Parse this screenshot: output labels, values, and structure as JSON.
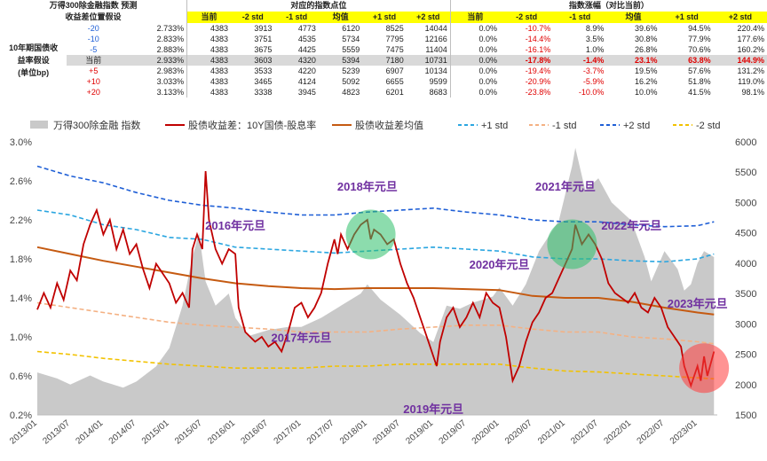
{
  "table": {
    "title_left": "万得300除金融指数 预测",
    "subtitle_left": "收益差位置假设",
    "group_points": "对应的指数点位",
    "group_change": "指数涨幅（对比当前）",
    "row_header": [
      "10年期国债收",
      "益率假设",
      "(单位bp)"
    ],
    "col_labels": [
      "当前",
      "-2 std",
      "-1 std",
      "均值",
      "+1 std",
      "+2 std"
    ],
    "rows": [
      {
        "shift": "-20",
        "yield": "2.733%",
        "points": [
          "4383",
          "3913",
          "4773",
          "6120",
          "8525",
          "14044"
        ],
        "change": [
          "0.0%",
          "-10.7%",
          "8.9%",
          "39.6%",
          "94.5%",
          "220.4%"
        ]
      },
      {
        "shift": "-10",
        "yield": "2.833%",
        "points": [
          "4383",
          "3751",
          "4535",
          "5734",
          "7795",
          "12166"
        ],
        "change": [
          "0.0%",
          "-14.4%",
          "3.5%",
          "30.8%",
          "77.9%",
          "177.6%"
        ]
      },
      {
        "shift": "-5",
        "yield": "2.883%",
        "points": [
          "4383",
          "3675",
          "4425",
          "5559",
          "7475",
          "11404"
        ],
        "change": [
          "0.0%",
          "-16.1%",
          "1.0%",
          "26.8%",
          "70.6%",
          "160.2%"
        ]
      },
      {
        "shift": "当前",
        "yield": "2.933%",
        "points": [
          "4383",
          "3603",
          "4320",
          "5394",
          "7180",
          "10731"
        ],
        "change": [
          "0.0%",
          "-17.8%",
          "-1.4%",
          "23.1%",
          "63.8%",
          "144.9%"
        ]
      },
      {
        "shift": "+5",
        "yield": "2.983%",
        "points": [
          "4383",
          "3533",
          "4220",
          "5239",
          "6907",
          "10134"
        ],
        "change": [
          "0.0%",
          "-19.4%",
          "-3.7%",
          "19.5%",
          "57.6%",
          "131.2%"
        ]
      },
      {
        "shift": "+10",
        "yield": "3.033%",
        "points": [
          "4383",
          "3465",
          "4124",
          "5092",
          "6655",
          "9599"
        ],
        "change": [
          "0.0%",
          "-20.9%",
          "-5.9%",
          "16.2%",
          "51.8%",
          "119.0%"
        ]
      },
      {
        "shift": "+20",
        "yield": "3.133%",
        "points": [
          "4383",
          "3338",
          "3945",
          "4823",
          "6201",
          "8683"
        ],
        "change": [
          "0.0%",
          "-23.8%",
          "-10.0%",
          "10.0%",
          "41.5%",
          "98.1%"
        ]
      }
    ]
  },
  "chart_data": {
    "type": "line",
    "legend": [
      "万得300除金融 指数",
      "股债收益差：10Y国债-股息率",
      "股债收益差均值",
      "+1 std",
      "-1 std",
      "+2 std",
      "-2 std"
    ],
    "x_ticks": [
      "2013/01",
      "2013/07",
      "2014/01",
      "2014/07",
      "2015/01",
      "2015/07",
      "2016/01",
      "2016/07",
      "2017/01",
      "2017/07",
      "2018/01",
      "2018/07",
      "2019/01",
      "2019/07",
      "2020/01",
      "2020/07",
      "2021/01",
      "2021/07",
      "2022/01",
      "2022/07",
      "2023/01"
    ],
    "y_left_ticks": [
      "0.2%",
      "0.6%",
      "1.0%",
      "1.4%",
      "1.8%",
      "2.2%",
      "2.6%",
      "3.0%"
    ],
    "y_left_range": [
      0.2,
      3.0
    ],
    "y_right_ticks": [
      "1500",
      "2000",
      "2500",
      "3000",
      "3500",
      "4000",
      "4500",
      "5000",
      "5500",
      "6000"
    ],
    "y_right_range": [
      1500,
      6000
    ],
    "x_range": [
      2013.0,
      2023.3
    ],
    "index_series": [
      [
        2013.0,
        2200
      ],
      [
        2013.3,
        2100
      ],
      [
        2013.5,
        2000
      ],
      [
        2013.8,
        2150
      ],
      [
        2014.0,
        2050
      ],
      [
        2014.3,
        1950
      ],
      [
        2014.5,
        2050
      ],
      [
        2014.8,
        2300
      ],
      [
        2015.0,
        2600
      ],
      [
        2015.2,
        3300
      ],
      [
        2015.35,
        4100
      ],
      [
        2015.45,
        4500
      ],
      [
        2015.55,
        3700
      ],
      [
        2015.7,
        3300
      ],
      [
        2015.9,
        3500
      ],
      [
        2016.0,
        3100
      ],
      [
        2016.2,
        2800
      ],
      [
        2016.5,
        2900
      ],
      [
        2016.8,
        2950
      ],
      [
        2017.0,
        2950
      ],
      [
        2017.3,
        3100
      ],
      [
        2017.6,
        3300
      ],
      [
        2017.9,
        3500
      ],
      [
        2018.0,
        3650
      ],
      [
        2018.2,
        3400
      ],
      [
        2018.5,
        3150
      ],
      [
        2018.8,
        2850
      ],
      [
        2019.0,
        2700
      ],
      [
        2019.2,
        3300
      ],
      [
        2019.4,
        3250
      ],
      [
        2019.6,
        3350
      ],
      [
        2019.9,
        3450
      ],
      [
        2020.0,
        3600
      ],
      [
        2020.2,
        3300
      ],
      [
        2020.4,
        3650
      ],
      [
        2020.6,
        4200
      ],
      [
        2020.9,
        4700
      ],
      [
        2021.1,
        5600
      ],
      [
        2021.15,
        5900
      ],
      [
        2021.3,
        5200
      ],
      [
        2021.5,
        5400
      ],
      [
        2021.7,
        5000
      ],
      [
        2021.9,
        4800
      ],
      [
        2022.0,
        4700
      ],
      [
        2022.2,
        4100
      ],
      [
        2022.3,
        3700
      ],
      [
        2022.5,
        4200
      ],
      [
        2022.7,
        3900
      ],
      [
        2022.8,
        3550
      ],
      [
        2022.9,
        3650
      ],
      [
        2023.0,
        4000
      ],
      [
        2023.1,
        4200
      ],
      [
        2023.25,
        4100
      ]
    ],
    "spread_series": [
      [
        2013.0,
        1.28
      ],
      [
        2013.1,
        1.45
      ],
      [
        2013.2,
        1.3
      ],
      [
        2013.3,
        1.55
      ],
      [
        2013.4,
        1.38
      ],
      [
        2013.5,
        1.68
      ],
      [
        2013.6,
        1.58
      ],
      [
        2013.7,
        1.95
      ],
      [
        2013.8,
        2.15
      ],
      [
        2013.9,
        2.3
      ],
      [
        2014.0,
        2.05
      ],
      [
        2014.1,
        2.2
      ],
      [
        2014.2,
        1.9
      ],
      [
        2014.3,
        2.1
      ],
      [
        2014.4,
        1.85
      ],
      [
        2014.5,
        1.95
      ],
      [
        2014.6,
        1.7
      ],
      [
        2014.7,
        1.5
      ],
      [
        2014.8,
        1.75
      ],
      [
        2014.9,
        1.65
      ],
      [
        2015.0,
        1.55
      ],
      [
        2015.1,
        1.35
      ],
      [
        2015.2,
        1.45
      ],
      [
        2015.3,
        1.3
      ],
      [
        2015.35,
        1.9
      ],
      [
        2015.42,
        2.05
      ],
      [
        2015.5,
        1.9
      ],
      [
        2015.55,
        2.7
      ],
      [
        2015.6,
        2.2
      ],
      [
        2015.7,
        1.9
      ],
      [
        2015.8,
        1.75
      ],
      [
        2015.9,
        1.9
      ],
      [
        2016.0,
        1.85
      ],
      [
        2016.05,
        1.3
      ],
      [
        2016.15,
        1.05
      ],
      [
        2016.3,
        0.95
      ],
      [
        2016.4,
        1.0
      ],
      [
        2016.5,
        0.9
      ],
      [
        2016.6,
        0.95
      ],
      [
        2016.7,
        0.85
      ],
      [
        2016.8,
        1.05
      ],
      [
        2016.9,
        1.3
      ],
      [
        2017.0,
        1.35
      ],
      [
        2017.1,
        1.2
      ],
      [
        2017.2,
        1.3
      ],
      [
        2017.3,
        1.45
      ],
      [
        2017.4,
        1.75
      ],
      [
        2017.5,
        2.0
      ],
      [
        2017.55,
        1.85
      ],
      [
        2017.6,
        2.05
      ],
      [
        2017.7,
        1.9
      ],
      [
        2017.8,
        2.05
      ],
      [
        2017.9,
        2.15
      ],
      [
        2018.0,
        2.2
      ],
      [
        2018.05,
        2.0
      ],
      [
        2018.1,
        2.1
      ],
      [
        2018.2,
        2.05
      ],
      [
        2018.3,
        1.95
      ],
      [
        2018.4,
        2.0
      ],
      [
        2018.5,
        1.75
      ],
      [
        2018.6,
        1.55
      ],
      [
        2018.7,
        1.4
      ],
      [
        2018.8,
        1.2
      ],
      [
        2018.9,
        1.0
      ],
      [
        2019.0,
        0.8
      ],
      [
        2019.05,
        0.7
      ],
      [
        2019.1,
        0.95
      ],
      [
        2019.2,
        1.2
      ],
      [
        2019.3,
        1.3
      ],
      [
        2019.4,
        1.1
      ],
      [
        2019.5,
        1.2
      ],
      [
        2019.6,
        1.35
      ],
      [
        2019.7,
        1.2
      ],
      [
        2019.8,
        1.45
      ],
      [
        2019.9,
        1.35
      ],
      [
        2020.0,
        1.3
      ],
      [
        2020.1,
        1.0
      ],
      [
        2020.2,
        0.55
      ],
      [
        2020.3,
        0.7
      ],
      [
        2020.4,
        0.95
      ],
      [
        2020.5,
        1.15
      ],
      [
        2020.6,
        1.25
      ],
      [
        2020.7,
        1.4
      ],
      [
        2020.8,
        1.45
      ],
      [
        2020.9,
        1.6
      ],
      [
        2021.0,
        1.75
      ],
      [
        2021.1,
        1.9
      ],
      [
        2021.15,
        2.15
      ],
      [
        2021.25,
        1.95
      ],
      [
        2021.35,
        2.05
      ],
      [
        2021.45,
        1.95
      ],
      [
        2021.55,
        1.8
      ],
      [
        2021.65,
        1.55
      ],
      [
        2021.75,
        1.45
      ],
      [
        2021.85,
        1.4
      ],
      [
        2021.95,
        1.35
      ],
      [
        2022.05,
        1.45
      ],
      [
        2022.15,
        1.3
      ],
      [
        2022.25,
        1.25
      ],
      [
        2022.35,
        1.4
      ],
      [
        2022.45,
        1.3
      ],
      [
        2022.55,
        1.1
      ],
      [
        2022.65,
        1.0
      ],
      [
        2022.75,
        0.9
      ],
      [
        2022.8,
        0.7
      ],
      [
        2022.9,
        0.5
      ],
      [
        2023.0,
        0.7
      ],
      [
        2023.05,
        0.55
      ],
      [
        2023.1,
        0.8
      ],
      [
        2023.15,
        0.6
      ],
      [
        2023.25,
        0.85
      ]
    ],
    "mean_series": [
      [
        2013.0,
        1.92
      ],
      [
        2013.5,
        1.85
      ],
      [
        2014.0,
        1.78
      ],
      [
        2014.5,
        1.72
      ],
      [
        2015.0,
        1.66
      ],
      [
        2015.5,
        1.6
      ],
      [
        2016.0,
        1.55
      ],
      [
        2016.5,
        1.52
      ],
      [
        2017.0,
        1.5
      ],
      [
        2017.5,
        1.49
      ],
      [
        2018.0,
        1.5
      ],
      [
        2018.5,
        1.5
      ],
      [
        2019.0,
        1.5
      ],
      [
        2019.5,
        1.49
      ],
      [
        2020.0,
        1.48
      ],
      [
        2020.5,
        1.42
      ],
      [
        2021.0,
        1.4
      ],
      [
        2021.5,
        1.4
      ],
      [
        2022.0,
        1.36
      ],
      [
        2022.5,
        1.3
      ],
      [
        2023.0,
        1.25
      ],
      [
        2023.25,
        1.23
      ]
    ],
    "plus1_series": [
      [
        2013.0,
        2.3
      ],
      [
        2013.5,
        2.25
      ],
      [
        2014.0,
        2.15
      ],
      [
        2014.5,
        2.1
      ],
      [
        2015.0,
        2.02
      ],
      [
        2015.5,
        2.0
      ],
      [
        2016.0,
        1.92
      ],
      [
        2016.5,
        1.9
      ],
      [
        2017.0,
        1.88
      ],
      [
        2017.5,
        1.86
      ],
      [
        2018.0,
        1.88
      ],
      [
        2018.5,
        1.9
      ],
      [
        2019.0,
        1.92
      ],
      [
        2019.5,
        1.9
      ],
      [
        2020.0,
        1.88
      ],
      [
        2020.5,
        1.82
      ],
      [
        2021.0,
        1.8
      ],
      [
        2021.5,
        1.8
      ],
      [
        2022.0,
        1.78
      ],
      [
        2022.5,
        1.77
      ],
      [
        2023.0,
        1.8
      ],
      [
        2023.25,
        1.85
      ]
    ],
    "minus1_series": [
      [
        2013.0,
        1.35
      ],
      [
        2013.5,
        1.3
      ],
      [
        2014.0,
        1.25
      ],
      [
        2014.5,
        1.2
      ],
      [
        2015.0,
        1.15
      ],
      [
        2015.5,
        1.12
      ],
      [
        2016.0,
        1.1
      ],
      [
        2016.5,
        1.08
      ],
      [
        2017.0,
        1.05
      ],
      [
        2017.5,
        1.05
      ],
      [
        2018.0,
        1.05
      ],
      [
        2018.5,
        1.08
      ],
      [
        2019.0,
        1.1
      ],
      [
        2019.5,
        1.12
      ],
      [
        2020.0,
        1.12
      ],
      [
        2020.5,
        1.08
      ],
      [
        2021.0,
        1.05
      ],
      [
        2021.5,
        1.05
      ],
      [
        2022.0,
        1.0
      ],
      [
        2022.5,
        0.98
      ],
      [
        2023.0,
        0.95
      ],
      [
        2023.25,
        0.93
      ]
    ],
    "plus2_series": [
      [
        2013.0,
        2.75
      ],
      [
        2013.5,
        2.65
      ],
      [
        2014.0,
        2.58
      ],
      [
        2014.5,
        2.48
      ],
      [
        2015.0,
        2.4
      ],
      [
        2015.5,
        2.35
      ],
      [
        2016.0,
        2.32
      ],
      [
        2016.5,
        2.28
      ],
      [
        2017.0,
        2.25
      ],
      [
        2017.5,
        2.25
      ],
      [
        2018.0,
        2.28
      ],
      [
        2018.5,
        2.3
      ],
      [
        2019.0,
        2.32
      ],
      [
        2019.5,
        2.28
      ],
      [
        2020.0,
        2.25
      ],
      [
        2020.5,
        2.2
      ],
      [
        2021.0,
        2.18
      ],
      [
        2021.5,
        2.18
      ],
      [
        2022.0,
        2.15
      ],
      [
        2022.5,
        2.13
      ],
      [
        2023.0,
        2.14
      ],
      [
        2023.25,
        2.18
      ]
    ],
    "minus2_series": [
      [
        2013.0,
        0.85
      ],
      [
        2013.5,
        0.82
      ],
      [
        2014.0,
        0.78
      ],
      [
        2014.5,
        0.75
      ],
      [
        2015.0,
        0.72
      ],
      [
        2015.5,
        0.7
      ],
      [
        2016.0,
        0.68
      ],
      [
        2016.5,
        0.68
      ],
      [
        2017.0,
        0.68
      ],
      [
        2017.5,
        0.7
      ],
      [
        2018.0,
        0.7
      ],
      [
        2018.5,
        0.72
      ],
      [
        2019.0,
        0.72
      ],
      [
        2019.5,
        0.72
      ],
      [
        2020.0,
        0.72
      ],
      [
        2020.5,
        0.68
      ],
      [
        2021.0,
        0.65
      ],
      [
        2021.5,
        0.64
      ],
      [
        2022.0,
        0.62
      ],
      [
        2022.5,
        0.6
      ],
      [
        2023.0,
        0.58
      ],
      [
        2023.25,
        0.57
      ]
    ],
    "annotations": [
      {
        "text": "2018年元旦",
        "x": 2018.0,
        "y": 2.5
      },
      {
        "text": "2016年元旦",
        "x": 2016.0,
        "y": 2.1
      },
      {
        "text": "2017年元旦",
        "x": 2017.0,
        "y": 0.95
      },
      {
        "text": "2019年元旦",
        "x": 2019.0,
        "y": 0.22
      },
      {
        "text": "2020年元旦",
        "x": 2020.0,
        "y": 1.7
      },
      {
        "text": "2021年元旦",
        "x": 2021.0,
        "y": 2.5
      },
      {
        "text": "2022年元旦",
        "x": 2022.0,
        "y": 2.1
      },
      {
        "text": "2023年元旦",
        "x": 2023.0,
        "y": 1.3
      }
    ],
    "highlights": [
      {
        "name": "green-circle-2018",
        "x": 2018.05,
        "y": 2.05,
        "color": "#2DBF6A"
      },
      {
        "name": "green-circle-2021",
        "x": 2021.1,
        "y": 1.95,
        "color": "#2DBF6A"
      },
      {
        "name": "red-circle-2023",
        "x": 2023.1,
        "y": 0.68,
        "color": "#FF3B3B"
      }
    ],
    "colors": {
      "index_fill": "#C9C9C9",
      "spread": "#C00000",
      "mean": "#C55A11",
      "plus1": "#2BA6E0",
      "minus1": "#F4B183",
      "plus2": "#1F5FD6",
      "minus2": "#F2C200"
    }
  }
}
